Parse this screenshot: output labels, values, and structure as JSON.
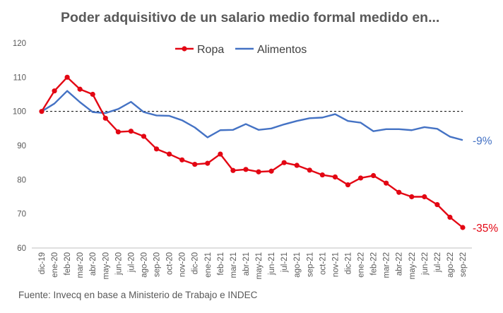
{
  "chart_data": {
    "type": "line",
    "title": "Poder adquisitivo de un salario medio formal medido en...",
    "source": "Fuente: Invecq en base a Ministerio de Trabajo e INDEC",
    "ylim": [
      60,
      120
    ],
    "yticks": [
      "60",
      "70",
      "80",
      "90",
      "100",
      "110",
      "120"
    ],
    "reference_line": 100,
    "legend_position": "top-center",
    "grid": false,
    "categories": [
      "dic-19",
      "ene-20",
      "feb-20",
      "mar-20",
      "abr-20",
      "may-20",
      "jun-20",
      "jul-20",
      "ago-20",
      "sep-20",
      "oct-20",
      "nov-20",
      "dic-20",
      "ene-21",
      "feb-21",
      "mar-21",
      "abr-21",
      "may-21",
      "jun-21",
      "jul-21",
      "ago-21",
      "sep-21",
      "oct-21",
      "nov-21",
      "dic-21",
      "ene-22",
      "feb-22",
      "mar-22",
      "abr-22",
      "may-22",
      "jun-22",
      "jul-22",
      "ago-22",
      "sep-22"
    ],
    "series": [
      {
        "name": "Ropa",
        "color": "#e30613",
        "markers": true,
        "end_label": "-35%",
        "values": [
          100,
          106,
          110,
          106.5,
          105,
          98,
          94,
          94.2,
          92.7,
          89,
          87.5,
          85.8,
          84.5,
          84.8,
          87.5,
          82.7,
          83,
          82.3,
          82.5,
          85,
          84.2,
          82.8,
          81.4,
          80.8,
          78.5,
          80.5,
          81.2,
          79,
          76.3,
          75,
          75,
          72.7,
          69,
          66
        ]
      },
      {
        "name": "Alimentos",
        "color": "#4472c4",
        "markers": false,
        "end_label": "-9%",
        "values": [
          100,
          102.3,
          106,
          102.7,
          99.8,
          99.5,
          100.7,
          102.8,
          99.8,
          98.8,
          98.7,
          97.4,
          95.3,
          92.4,
          94.5,
          94.6,
          96.3,
          94.6,
          95,
          96.2,
          97.2,
          98,
          98.2,
          99.2,
          97.2,
          96.7,
          94.2,
          94.8,
          94.8,
          94.5,
          95.4,
          94.9,
          92.6,
          91.6
        ]
      }
    ]
  }
}
